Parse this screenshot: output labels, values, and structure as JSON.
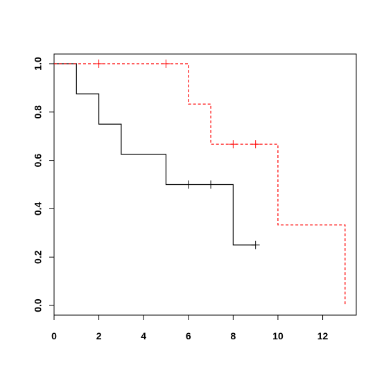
{
  "chart_data": {
    "type": "line",
    "title": "",
    "xlabel": "",
    "ylabel": "",
    "xlim": [
      0,
      13.5
    ],
    "ylim": [
      -0.04,
      1.04
    ],
    "x_ticks": [
      0,
      2,
      4,
      6,
      8,
      10,
      12
    ],
    "y_ticks": [
      0.0,
      0.2,
      0.4,
      0.6,
      0.8,
      1.0
    ],
    "x_tick_labels": [
      "0",
      "2",
      "4",
      "6",
      "8",
      "10",
      "12"
    ],
    "y_tick_labels": [
      "0.0",
      "0.2",
      "0.4",
      "0.6",
      "0.8",
      "1.0"
    ],
    "grid": false,
    "legend": "none",
    "series": [
      {
        "style": "solid",
        "color": "#000000",
        "steps": [
          [
            0,
            1.0
          ],
          [
            1,
            0.875
          ],
          [
            2,
            0.75
          ],
          [
            3,
            0.625
          ],
          [
            5,
            0.5
          ],
          [
            8,
            0.25
          ],
          [
            9,
            0.25
          ]
        ],
        "censored": [
          [
            6,
            0.5
          ],
          [
            7,
            0.5
          ],
          [
            9,
            0.25
          ]
        ]
      },
      {
        "style": "dashed",
        "color": "#ff0000",
        "steps": [
          [
            0,
            1.0
          ],
          [
            6,
            0.833
          ],
          [
            7,
            0.667
          ],
          [
            10,
            0.333
          ],
          [
            13,
            0.0
          ]
        ],
        "censored": [
          [
            2,
            1.0
          ],
          [
            5,
            1.0
          ],
          [
            8,
            0.667
          ],
          [
            9,
            0.667
          ]
        ]
      }
    ]
  }
}
